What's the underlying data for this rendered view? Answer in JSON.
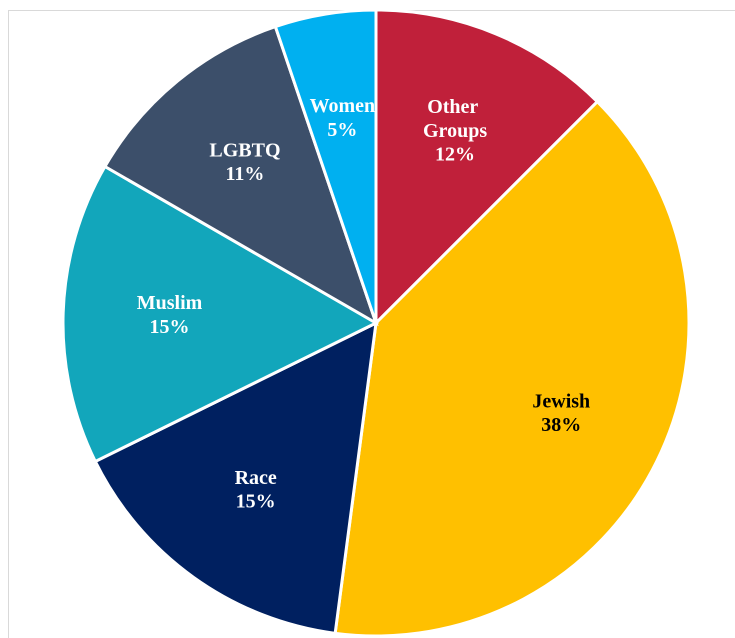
{
  "chart_data": {
    "type": "pie",
    "categories": [
      "Other Groups",
      "Jewish",
      "Race",
      "Muslim",
      "LGBTQ",
      "Women"
    ],
    "values": [
      12,
      38,
      15,
      15,
      11,
      5
    ],
    "value_labels": [
      "12%",
      "38%",
      "15%",
      "15%",
      "11%",
      "5%"
    ],
    "colors": [
      "#c0203a",
      "#ffc000",
      "#002060",
      "#12a6bb",
      "#3c4f6a",
      "#00b0f0"
    ]
  }
}
